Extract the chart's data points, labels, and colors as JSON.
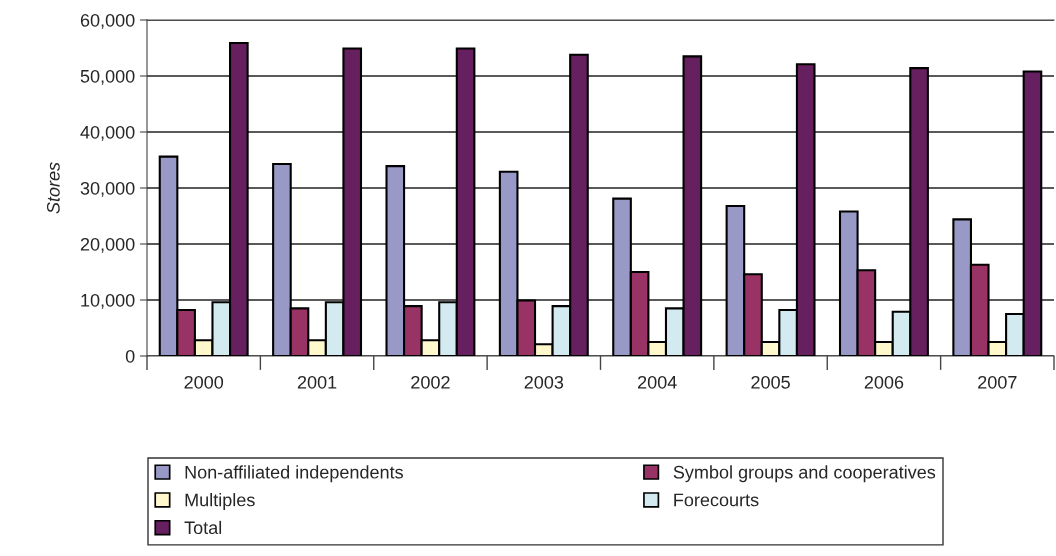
{
  "chart_data": {
    "type": "bar",
    "ylabel": "Stores",
    "categories": [
      "2000",
      "2001",
      "2002",
      "2003",
      "2004",
      "2005",
      "2006",
      "2007"
    ],
    "series": [
      {
        "name": "Non-affiliated independents",
        "color": "#9999c8",
        "values": [
          35600,
          34300,
          33900,
          32900,
          28100,
          26800,
          25800,
          24400
        ]
      },
      {
        "name": "Symbol groups and cooperatives",
        "color": "#993366",
        "values": [
          8200,
          8500,
          8900,
          9900,
          15000,
          14600,
          15300,
          16300
        ]
      },
      {
        "name": "Multiples",
        "color": "#fff8cc",
        "values": [
          2800,
          2800,
          2800,
          2100,
          2500,
          2500,
          2500,
          2500
        ]
      },
      {
        "name": "Forecourts",
        "color": "#d2eaf0",
        "values": [
          9600,
          9600,
          9600,
          8900,
          8500,
          8200,
          7900,
          7500
        ]
      },
      {
        "name": "Total",
        "color": "#661f5f",
        "values": [
          55900,
          54900,
          54900,
          53800,
          53500,
          52100,
          51400,
          50800
        ]
      }
    ],
    "ylim": [
      0,
      60000
    ],
    "yticks": [
      0,
      {
        "value": 10000,
        "label": "10,000"
      },
      {
        "value": 20000,
        "label": "20,000"
      },
      {
        "value": 30000,
        "label": "30,000"
      },
      {
        "value": 40000,
        "label": "40,000"
      },
      {
        "value": 50000,
        "label": "50,000"
      },
      {
        "value": 60000,
        "label": "60,000"
      }
    ],
    "grid": "y",
    "legend": "bottom"
  }
}
